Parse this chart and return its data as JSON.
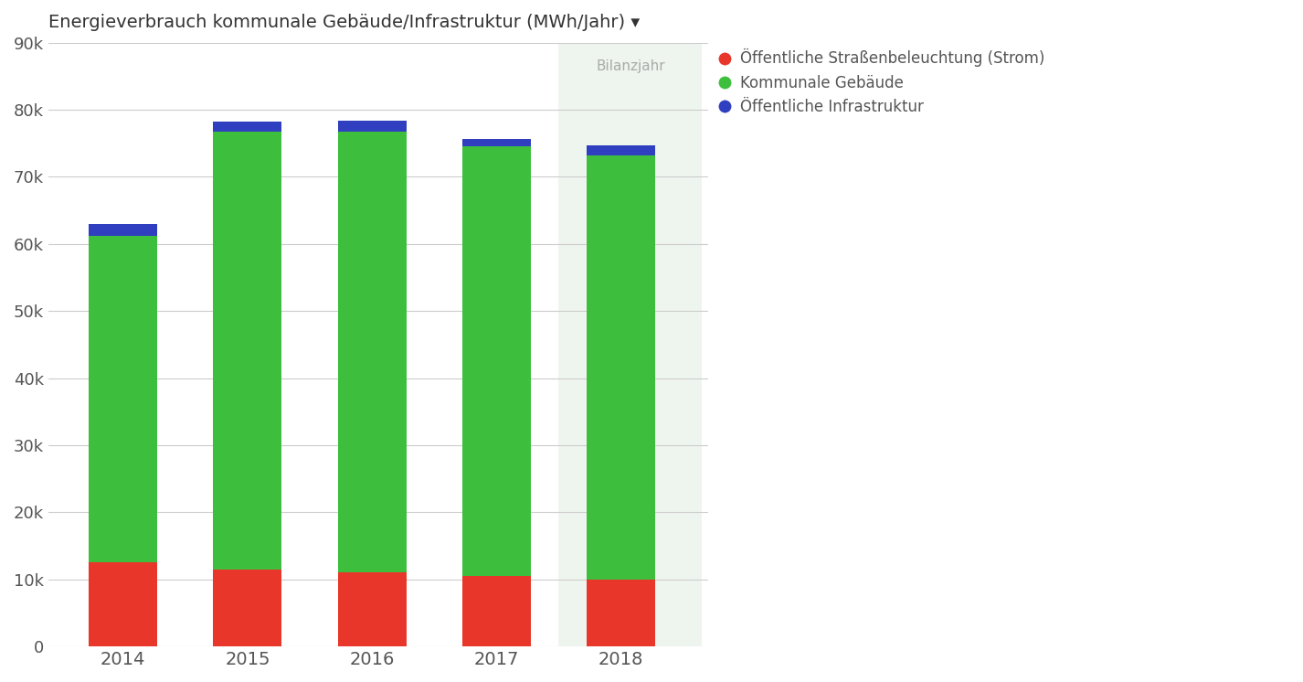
{
  "years": [
    "2014",
    "2015",
    "2016",
    "2017",
    "2018"
  ],
  "red_values": [
    12500,
    11500,
    11000,
    10500,
    10000
  ],
  "green_values": [
    48700,
    65200,
    65700,
    64000,
    63200
  ],
  "blue_values": [
    1800,
    1500,
    1700,
    1100,
    1500
  ],
  "colors": {
    "red": "#e8372a",
    "green": "#3dbf3d",
    "blue": "#2f3fbf"
  },
  "title": "Energieverbrauch kommunale Gebäude/Infrastruktur (MWh/Jahr) ▾",
  "ylim": [
    0,
    90000
  ],
  "yticks": [
    0,
    10000,
    20000,
    30000,
    40000,
    50000,
    60000,
    70000,
    80000,
    90000
  ],
  "ytick_labels": [
    "0",
    "10k",
    "20k",
    "30k",
    "40k",
    "50k",
    "60k",
    "70k",
    "80k",
    "90k"
  ],
  "legend_labels": [
    "Öffentliche Straßenbeleuchtung (Strom)",
    "Kommunale Gebäude",
    "Öffentliche Infrastruktur"
  ],
  "bilanzjahr_label": "Bilanzjahr",
  "highlight_year": "2018",
  "background_color": "#ffffff",
  "highlight_bg_color": "#eef5ee",
  "grid_color": "#cccccc",
  "bar_width": 0.55
}
